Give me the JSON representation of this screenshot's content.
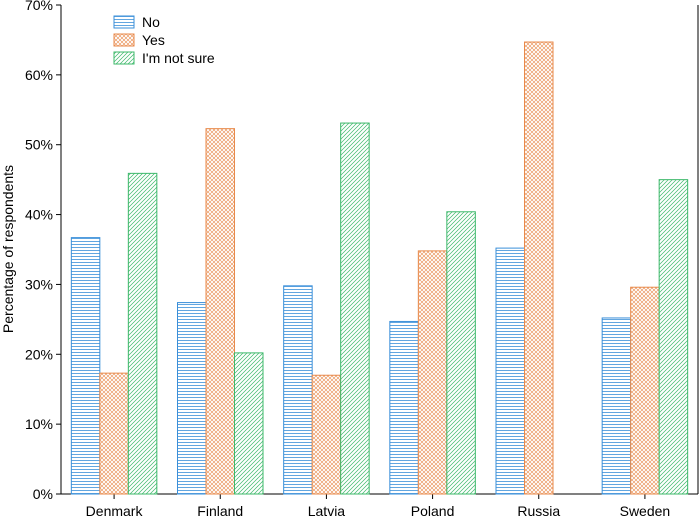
{
  "chart_data": {
    "type": "bar",
    "title": "",
    "xlabel": "",
    "ylabel": "Percentage of respondents",
    "ylim": [
      0,
      70
    ],
    "yticks": [
      "0%",
      "10%",
      "20%",
      "30%",
      "40%",
      "50%",
      "60%",
      "70%"
    ],
    "categories": [
      "Denmark",
      "Finland",
      "Latvia",
      "Poland",
      "Russia",
      "Sweden"
    ],
    "series": [
      {
        "name": "No",
        "color": "#3a8fd9",
        "pattern": "horizontal-hatch",
        "values": [
          36.7,
          27.4,
          29.8,
          24.7,
          35.2,
          25.2
        ]
      },
      {
        "name": "Yes",
        "color": "#e8894a",
        "pattern": "crosshatch",
        "values": [
          17.3,
          52.3,
          17.0,
          34.8,
          64.7,
          29.6
        ]
      },
      {
        "name": "I'm not sure",
        "color": "#3cb86a",
        "pattern": "diagonal-hatch",
        "values": [
          45.9,
          20.2,
          53.1,
          40.4,
          0,
          45.0
        ]
      }
    ],
    "legend": "top-left",
    "grid": false
  }
}
